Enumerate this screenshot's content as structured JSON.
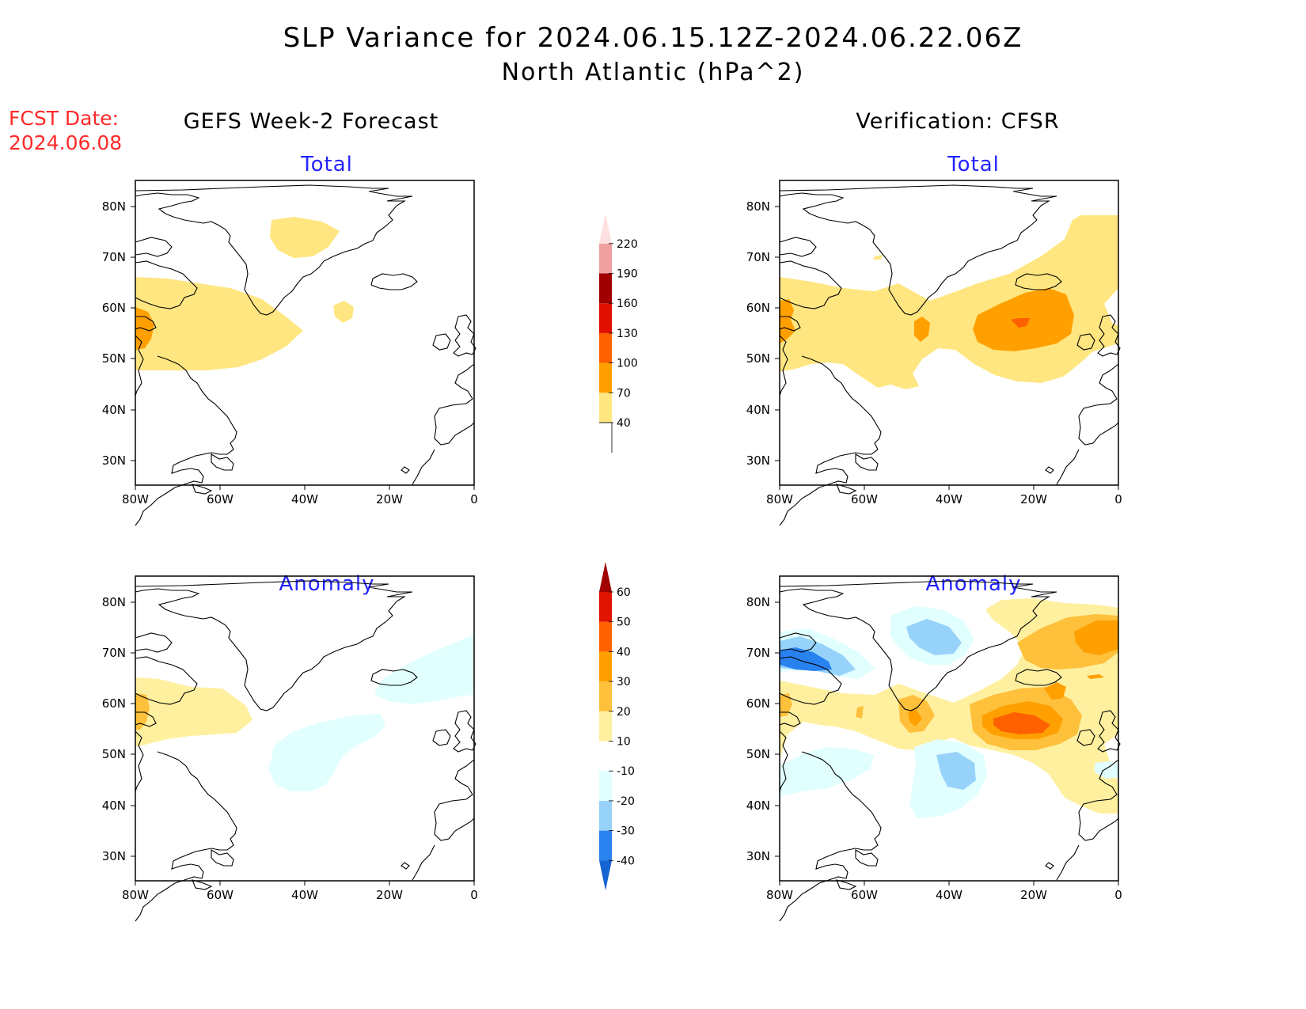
{
  "header": {
    "title": "SLP Variance for 2024.06.15.12Z-2024.06.22.06Z",
    "subtitle": "North Atlantic (hPa^2)",
    "fcst_label": "FCST Date:",
    "fcst_date": "2024.06.08"
  },
  "columns": {
    "left": "GEFS Week-2 Forecast",
    "right": "Verification: CFSR"
  },
  "panels": {
    "top_left": "Total",
    "top_right": "Total",
    "bottom_left": "Anomaly",
    "bottom_right": "Anomaly"
  },
  "axes": {
    "lat_labels": [
      "80N",
      "70N",
      "60N",
      "50N",
      "40N",
      "30N"
    ],
    "lon_labels": [
      "80W",
      "60W",
      "40W",
      "20W",
      "0"
    ]
  },
  "total_colorbar": {
    "levels": [
      "40",
      "70",
      "100",
      "130",
      "160",
      "190",
      "220"
    ],
    "colors": [
      "#ffe680",
      "#ffa000",
      "#ff6000",
      "#e01000",
      "#a00000",
      "#f0a0a0",
      "#ffe0e0"
    ]
  },
  "anomaly_colorbar": {
    "levels": [
      "-40",
      "-30",
      "-20",
      "-10",
      "10",
      "20",
      "30",
      "40",
      "50",
      "60"
    ],
    "colors": [
      "#1464d2",
      "#2882f0",
      "#96d2fa",
      "#e1ffff",
      "#ffffff",
      "#fff0a0",
      "#ffc03c",
      "#ffa000",
      "#ff6000",
      "#e01400",
      "#a00000"
    ]
  }
}
